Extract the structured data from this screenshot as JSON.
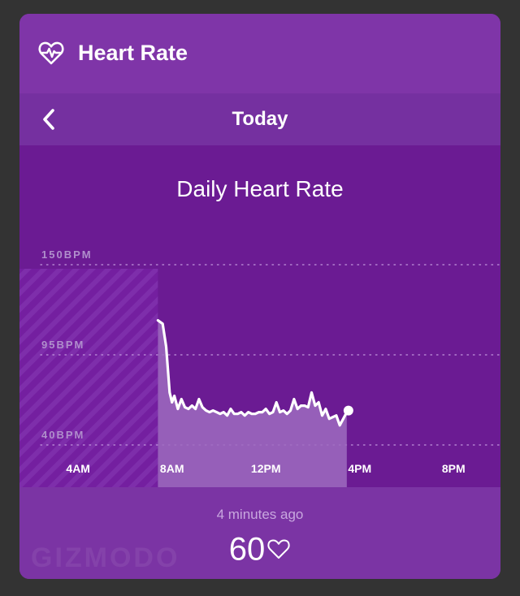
{
  "header": {
    "title": "Heart Rate",
    "icon": "heart-rate-icon"
  },
  "nav": {
    "day_label": "Today",
    "back_icon": "chevron-left-icon"
  },
  "chart_title": "Daily Heart Rate",
  "chart_data": {
    "type": "area",
    "title": "Daily Heart Rate",
    "y_tick_labels": [
      "150BPM",
      "95BPM",
      "40BPM"
    ],
    "y_ticks": [
      150,
      95,
      40
    ],
    "x_tick_labels": [
      "4AM",
      "8AM",
      "12PM",
      "4PM",
      "8PM"
    ],
    "x_ticks": [
      4,
      8,
      12,
      16,
      20
    ],
    "x_range": [
      1.5,
      22.0
    ],
    "y_range": [
      40,
      150
    ],
    "grid": "dotted horizontal",
    "no_data_until": 7.4,
    "series": [
      {
        "x": [
          7.4,
          7.6,
          7.75,
          7.9,
          8.0,
          8.1,
          8.25,
          8.4,
          8.55,
          8.7,
          8.85,
          9.0,
          9.15,
          9.3,
          9.45,
          9.6,
          9.75,
          9.9,
          10.05,
          10.2,
          10.35,
          10.5,
          10.65,
          10.8,
          10.95,
          11.1,
          11.25,
          11.4,
          11.55,
          11.7,
          11.85,
          12.0,
          12.15,
          12.3,
          12.45,
          12.6,
          12.75,
          12.9,
          13.05,
          13.2,
          13.35,
          13.5,
          13.65,
          13.8,
          13.95,
          14.1,
          14.25,
          14.4,
          14.55,
          14.7,
          14.85,
          15.0,
          15.15,
          15.3,
          15.45
        ],
        "y": [
          116,
          114,
          100,
          72,
          66,
          70,
          62,
          68,
          63,
          62,
          64,
          62,
          68,
          63,
          61,
          60,
          61,
          60,
          59,
          60,
          58,
          62,
          59,
          59,
          60,
          58,
          60,
          59,
          59,
          60,
          60,
          62,
          59,
          60,
          66,
          60,
          61,
          59,
          61,
          68,
          62,
          64,
          64,
          63,
          72,
          64,
          66,
          58,
          62,
          56,
          57,
          58,
          52,
          56,
          60
        ]
      }
    ],
    "current_value": 60
  },
  "footer": {
    "ago": "4 minutes ago",
    "bpm": "60",
    "heart_icon": "heart-outline-icon"
  },
  "watermark": "GIZMODO",
  "colors": {
    "page_bg": "#333333",
    "header_bg": "#7f35a8",
    "chart_bg": "#6b1b93",
    "footer_bg": "#7b34a4",
    "line": "#ffffff",
    "area_fill": "#9d6bc0"
  }
}
